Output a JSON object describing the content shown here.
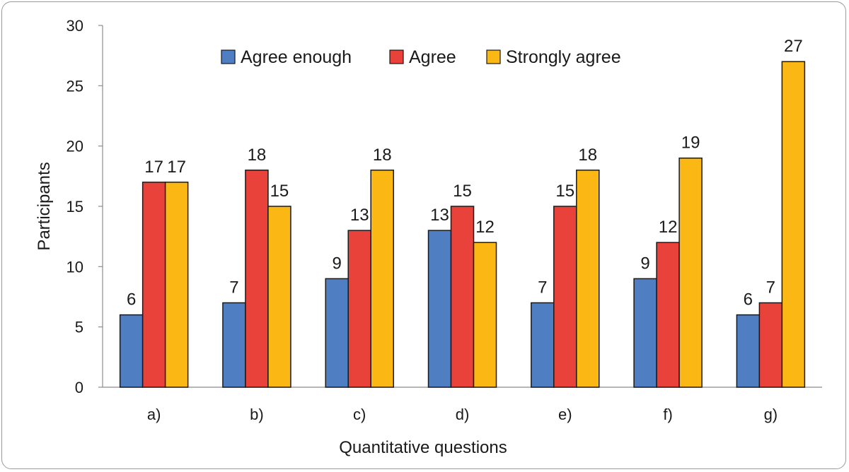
{
  "chart_data": {
    "type": "bar",
    "title": "",
    "xlabel": "Quantitative questions",
    "ylabel": "Participants",
    "ylim": [
      0,
      30
    ],
    "yticks": [
      0,
      5,
      10,
      15,
      20,
      25,
      30
    ],
    "grid": false,
    "legend_position": "top",
    "categories": [
      "a)",
      "b)",
      "c)",
      "d)",
      "e)",
      "f)",
      "g)"
    ],
    "series": [
      {
        "name": "Agree enough",
        "color": "#4f7ec2",
        "values": [
          6,
          7,
          9,
          13,
          7,
          9,
          6
        ]
      },
      {
        "name": "Agree",
        "color": "#e8423a",
        "values": [
          17,
          18,
          13,
          15,
          15,
          12,
          7
        ]
      },
      {
        "name": "Strongly agree",
        "color": "#fbb714",
        "values": [
          17,
          15,
          18,
          12,
          18,
          19,
          27
        ]
      }
    ]
  }
}
